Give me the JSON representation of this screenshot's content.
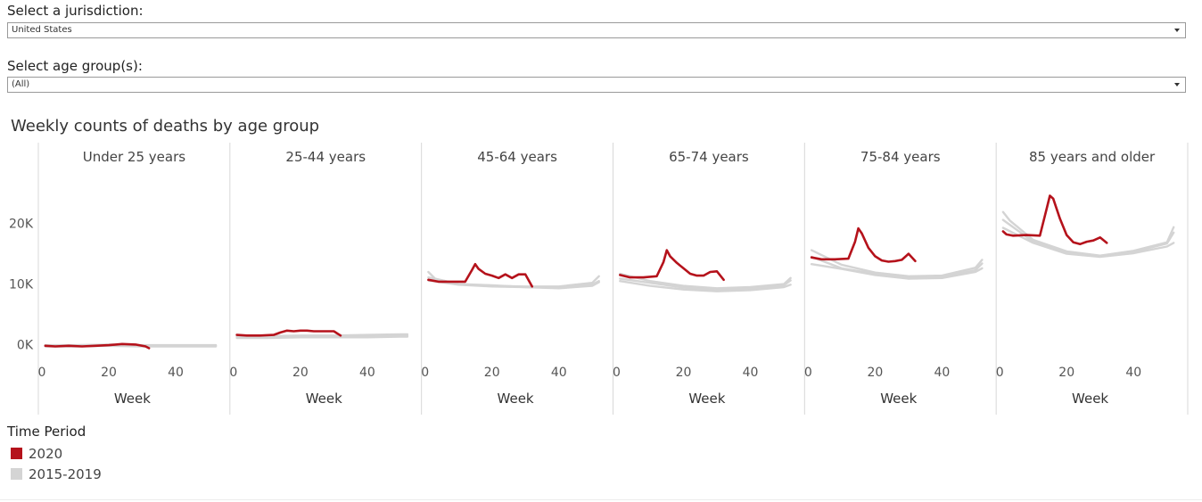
{
  "filters": {
    "jurisdiction": {
      "label": "Select a jurisdiction:",
      "value": "United States"
    },
    "age_group": {
      "label": "Select age group(s):",
      "value": "(All)"
    }
  },
  "colors": {
    "year_2020": "#b5121b",
    "baseline": "#d4d4d4"
  },
  "legend": {
    "title": "Time Period",
    "items": [
      {
        "label": "2020",
        "color": "#b5121b"
      },
      {
        "label": "2015-2019",
        "color": "#d4d4d4"
      }
    ]
  },
  "chart_data": {
    "type": "line",
    "title": "Weekly counts of deaths by age group",
    "xlabel": "Week",
    "xlim": [
      0,
      53
    ],
    "ylim": [
      -2000,
      26000
    ],
    "y_ticks": [
      {
        "value": 0,
        "label": "0K"
      },
      {
        "value": 10000,
        "label": "10K"
      },
      {
        "value": 20000,
        "label": "20K"
      }
    ],
    "x_ticks": [
      {
        "value": 0,
        "label": "0"
      },
      {
        "value": 20,
        "label": "20"
      },
      {
        "value": 40,
        "label": "40"
      }
    ],
    "panels": [
      {
        "name": "Under 25 years",
        "series": [
          {
            "name": "2020",
            "x": [
              1,
              4,
              8,
              12,
              16,
              20,
              24,
              28,
              31,
              32
            ],
            "values": [
              -200,
              -300,
              -200,
              -300,
              -200,
              -100,
              100,
              0,
              -300,
              -600
            ]
          },
          {
            "name": "2015-2019",
            "x": [
              1,
              10,
              20,
              30,
              40,
              50,
              52
            ],
            "values": [
              -300,
              -300,
              -200,
              -300,
              -300,
              -300,
              -300
            ]
          },
          {
            "name": "2015-2019",
            "x": [
              1,
              10,
              20,
              30,
              40,
              50,
              52
            ],
            "values": [
              -200,
              -200,
              -100,
              -200,
              -200,
              -200,
              -200
            ]
          },
          {
            "name": "2015-2019",
            "x": [
              1,
              10,
              20,
              30,
              40,
              50,
              52
            ],
            "values": [
              -100,
              -100,
              0,
              -100,
              -100,
              -100,
              -100
            ]
          }
        ]
      },
      {
        "name": "25-44 years",
        "series": [
          {
            "name": "2020",
            "x": [
              1,
              4,
              8,
              12,
              14,
              16,
              18,
              20,
              22,
              24,
              26,
              28,
              30,
              32
            ],
            "values": [
              1600,
              1500,
              1500,
              1600,
              2000,
              2300,
              2200,
              2300,
              2300,
              2200,
              2200,
              2200,
              2200,
              1500
            ]
          },
          {
            "name": "2015-2019",
            "x": [
              1,
              10,
              20,
              30,
              40,
              50,
              52
            ],
            "values": [
              1100,
              1100,
              1200,
              1200,
              1200,
              1300,
              1300
            ]
          },
          {
            "name": "2015-2019",
            "x": [
              1,
              10,
              20,
              30,
              40,
              50,
              52
            ],
            "values": [
              1300,
              1300,
              1300,
              1400,
              1400,
              1500,
              1500
            ]
          },
          {
            "name": "2015-2019",
            "x": [
              1,
              10,
              20,
              30,
              40,
              50,
              52
            ],
            "values": [
              1500,
              1400,
              1500,
              1500,
              1600,
              1700,
              1700
            ]
          }
        ]
      },
      {
        "name": "45-64 years",
        "series": [
          {
            "name": "2020",
            "x": [
              1,
              4,
              8,
              12,
              14,
              15,
              16,
              18,
              20,
              22,
              24,
              26,
              28,
              30,
              32
            ],
            "values": [
              10700,
              10400,
              10400,
              10400,
              12300,
              13300,
              12500,
              11700,
              11400,
              11000,
              11600,
              11000,
              11600,
              11600,
              9600
            ]
          },
          {
            "name": "2015-2019",
            "x": [
              1,
              3,
              10,
              20,
              30,
              40,
              50,
              52
            ],
            "values": [
              12000,
              10900,
              10000,
              9700,
              9600,
              9600,
              10200,
              11300
            ]
          },
          {
            "name": "2015-2019",
            "x": [
              1,
              10,
              20,
              30,
              40,
              50,
              52
            ],
            "values": [
              11100,
              10000,
              9800,
              9500,
              9400,
              9900,
              10500
            ]
          },
          {
            "name": "2015-2019",
            "x": [
              1,
              10,
              20,
              30,
              40,
              50,
              52
            ],
            "values": [
              10600,
              9900,
              9600,
              9500,
              9300,
              9700,
              10300
            ]
          }
        ]
      },
      {
        "name": "65-74 years",
        "series": [
          {
            "name": "2020",
            "x": [
              1,
              4,
              8,
              12,
              14,
              15,
              16,
              18,
              20,
              22,
              24,
              26,
              28,
              30,
              32
            ],
            "values": [
              11500,
              11100,
              11100,
              11300,
              13600,
              15600,
              14600,
              13500,
              12600,
              11700,
              11400,
              11400,
              12000,
              12100,
              10700
            ]
          },
          {
            "name": "2015-2019",
            "x": [
              1,
              10,
              20,
              30,
              40,
              50,
              52
            ],
            "values": [
              11700,
              10500,
              9700,
              9300,
              9500,
              10000,
              11000
            ]
          },
          {
            "name": "2015-2019",
            "x": [
              1,
              10,
              20,
              30,
              40,
              50,
              52
            ],
            "values": [
              10900,
              10200,
              9400,
              9000,
              9200,
              9800,
              10600
            ]
          },
          {
            "name": "2015-2019",
            "x": [
              1,
              10,
              20,
              30,
              40,
              50,
              52
            ],
            "values": [
              10500,
              9700,
              9100,
              8800,
              9000,
              9500,
              9900
            ]
          }
        ]
      },
      {
        "name": "75-84 years",
        "series": [
          {
            "name": "2020",
            "x": [
              1,
              4,
              8,
              12,
              14,
              15,
              16,
              18,
              20,
              22,
              24,
              26,
              28,
              30,
              32
            ],
            "values": [
              14400,
              14100,
              14100,
              14200,
              17000,
              19200,
              18400,
              16000,
              14600,
              13900,
              13700,
              13800,
              14000,
              15000,
              13800
            ]
          },
          {
            "name": "2015-2019",
            "x": [
              1,
              10,
              20,
              30,
              40,
              50,
              52
            ],
            "values": [
              15600,
              13200,
              11900,
              11300,
              11400,
              12700,
              14000
            ]
          },
          {
            "name": "2015-2019",
            "x": [
              1,
              10,
              20,
              30,
              40,
              50,
              52
            ],
            "values": [
              14500,
              12600,
              11700,
              11000,
              11200,
              12300,
              13400
            ]
          },
          {
            "name": "2015-2019",
            "x": [
              1,
              10,
              20,
              30,
              40,
              50,
              52
            ],
            "values": [
              13300,
              12500,
              11500,
              10900,
              11000,
              12000,
              12600
            ]
          }
        ]
      },
      {
        "name": "85 years and older",
        "series": [
          {
            "name": "2020",
            "x": [
              1,
              2,
              4,
              8,
              12,
              14,
              15,
              16,
              18,
              20,
              22,
              24,
              26,
              28,
              30,
              32
            ],
            "values": [
              18700,
              18200,
              18000,
              18100,
              18000,
              22400,
              24600,
              24100,
              20800,
              18100,
              16900,
              16600,
              17000,
              17200,
              17700,
              16800
            ]
          },
          {
            "name": "2015-2019",
            "x": [
              1,
              3,
              10,
              20,
              30,
              40,
              50,
              52
            ],
            "values": [
              21900,
              20500,
              17300,
              15400,
              14700,
              15500,
              16900,
              19400
            ]
          },
          {
            "name": "2015-2019",
            "x": [
              1,
              10,
              20,
              30,
              40,
              50,
              52
            ],
            "values": [
              20600,
              17000,
              15200,
              14600,
              15300,
              16700,
              18500
            ]
          },
          {
            "name": "2015-2019",
            "x": [
              1,
              10,
              20,
              30,
              40,
              50,
              52
            ],
            "values": [
              19300,
              16800,
              15000,
              14500,
              15100,
              16200,
              16800
            ]
          }
        ]
      }
    ]
  }
}
